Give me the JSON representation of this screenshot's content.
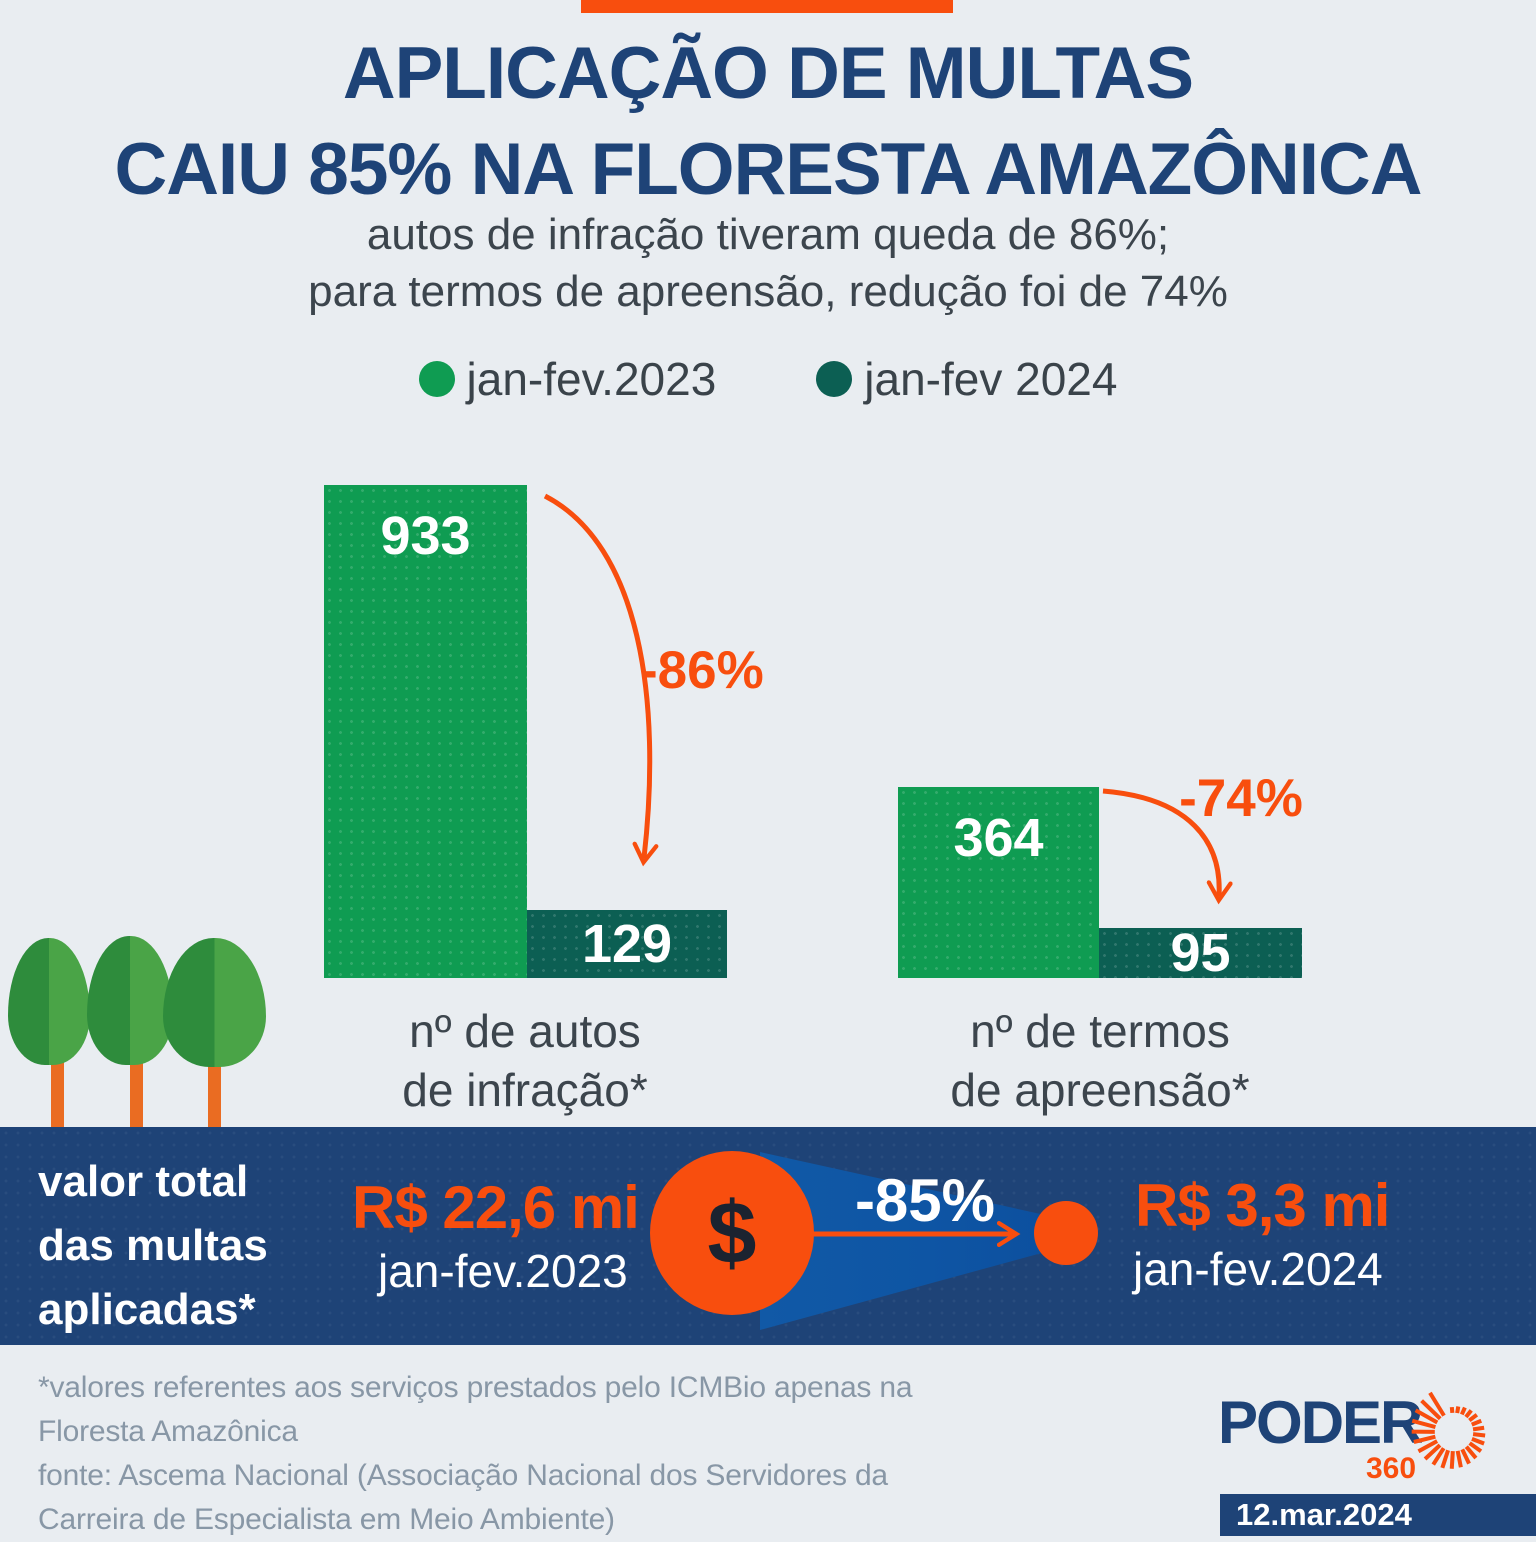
{
  "colors": {
    "background": "#e9edf1",
    "navy": "#1e4377",
    "green_2023": "#0f9c52",
    "teal_2024": "#0c5f53",
    "orange_accent": "#f84e0e",
    "beam_blue": "#0f55a2",
    "note_gray": "#8897a6"
  },
  "header": {
    "title_line1": "APLICAÇÃO DE MULTAS",
    "title_line2": "CAIU 85% NA FLORESTA AMAZÔNICA",
    "subtitle_line1": "autos de infração tiveram queda de 86%;",
    "subtitle_line2": "para termos de apreensão, redução foi de 74%"
  },
  "legend": {
    "items": [
      {
        "label": "jan-fev.2023",
        "color": "#0f9c52"
      },
      {
        "label": "jan-fev 2024",
        "color": "#0c5f53"
      }
    ]
  },
  "chart_data": {
    "type": "bar",
    "series_labels": [
      "jan-fev.2023",
      "jan-fev 2024"
    ],
    "groups": [
      {
        "category": "nº de autos de infração*",
        "caption_line1": "nº de autos",
        "caption_line2": "de infração*",
        "values": [
          933,
          129
        ],
        "change": "-86%"
      },
      {
        "category": "nº de termos de apreensão*",
        "caption_line1": "nº de termos",
        "caption_line2": "de apreensão*",
        "values": [
          364,
          95
        ],
        "change": "-74%"
      }
    ],
    "money_comparison": {
      "label": "valor total das multas aplicadas*",
      "before": {
        "value_text": "R$ 22,6 mi",
        "value_mi": 22.6,
        "period": "jan-fev.2023"
      },
      "after": {
        "value_text": "R$ 3,3 mi",
        "value_mi": 3.3,
        "period": "jan-fev.2024"
      },
      "change": "-85%"
    },
    "legend_position": "top",
    "grid": false
  },
  "band": {
    "label_lines": [
      "valor total",
      "das multas",
      "aplicadas*"
    ],
    "before_value": "R$ 22,6 mi",
    "before_period": "jan-fev.2023",
    "change": "-85%",
    "after_value": "R$ 3,3 mi",
    "after_period": "jan-fev.2024",
    "dollar": "$"
  },
  "footer": {
    "note_line1": "*valores referentes aos serviços prestados pelo ICMBio apenas na",
    "note_line2": "Floresta Amazônica",
    "note_line3": "fonte: Ascema Nacional (Associação Nacional dos Servidores da",
    "note_line4": "Carreira de Especialista em Meio Ambiente)",
    "logo_text": "PODER",
    "logo_sub": "360",
    "date": "12.mar.2024"
  }
}
